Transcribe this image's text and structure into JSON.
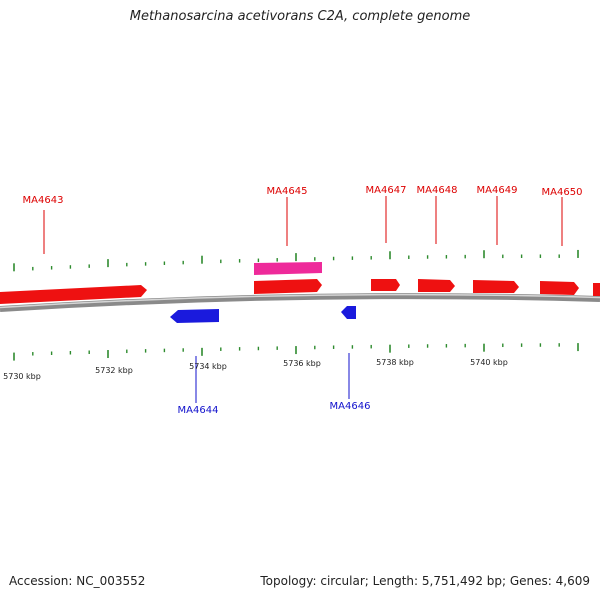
{
  "title": "Methanosarcina acetivorans C2A, complete genome",
  "footer": {
    "accession": "Accession: NC_003552",
    "stats": "Topology: circular; Length: 5,751,492 bp; Genes: 4,609"
  },
  "colors": {
    "forward_gene": "#ee1111",
    "forward_label": "#dd0000",
    "reverse_gene": "#1a1add",
    "reverse_label": "#1010cc",
    "highlight_gene": "#ee2a9a",
    "backbone": "#8a8a8a",
    "tick": "#2e8b2e"
  },
  "scale_labels": [
    "5730 kbp",
    "5732 kbp",
    "5734 kbp",
    "5736 kbp",
    "5738 kbp",
    "5740 kbp"
  ],
  "genes": [
    {
      "name": "MA4643",
      "strand": "forward"
    },
    {
      "name": "MA4644",
      "strand": "reverse"
    },
    {
      "name": "MA4645",
      "strand": "forward"
    },
    {
      "name": "MA4646",
      "strand": "reverse"
    },
    {
      "name": "MA4647",
      "strand": "forward"
    },
    {
      "name": "MA4648",
      "strand": "forward"
    },
    {
      "name": "MA4649",
      "strand": "forward"
    },
    {
      "name": "MA4650",
      "strand": "forward"
    }
  ]
}
